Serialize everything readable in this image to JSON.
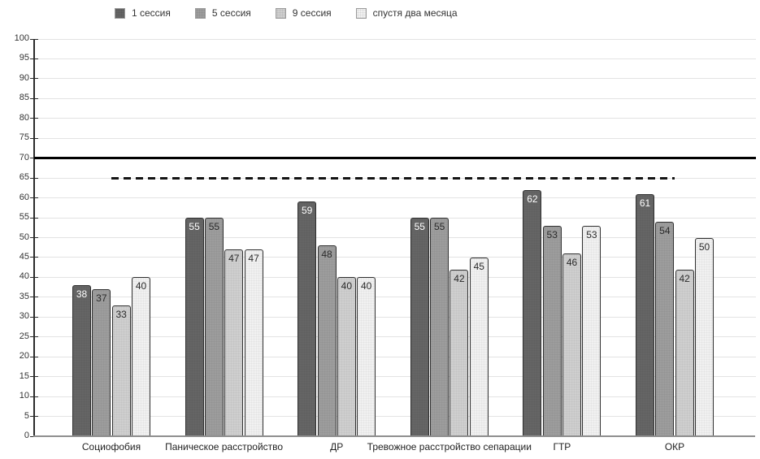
{
  "chart_data": {
    "type": "bar",
    "categories": [
      "Социофобия",
      "Паническое расстройство",
      "ДР",
      "Тревожное расстройство сепарации",
      "ГТР",
      "ОКР"
    ],
    "series": [
      {
        "name": "1 сессия",
        "color": "#656565",
        "label_color": "#ffffff",
        "values": [
          38,
          55,
          59,
          55,
          62,
          61
        ]
      },
      {
        "name": "5 сессия",
        "color": "#9d9d9d",
        "label_color": "#2b2b2b",
        "values": [
          37,
          55,
          48,
          55,
          53,
          54
        ]
      },
      {
        "name": "9 сессия",
        "color": "#cfcfcf",
        "label_color": "#2b2b2b",
        "values": [
          33,
          47,
          40,
          42,
          46,
          42
        ]
      },
      {
        "name": "спустя два месяца",
        "color": "#f1f1f1",
        "label_color": "#2b2b2b",
        "values": [
          40,
          47,
          40,
          45,
          53,
          50
        ]
      }
    ],
    "title": "",
    "xlabel": "",
    "ylabel": "",
    "ylim": [
      0,
      100
    ],
    "ytick_step": 5,
    "grid": true,
    "legend_position": "top",
    "reference_lines": [
      {
        "value": 70,
        "style": "solid",
        "color": "#000000"
      },
      {
        "value": 65,
        "style": "dashed",
        "color": "#141414"
      }
    ]
  }
}
